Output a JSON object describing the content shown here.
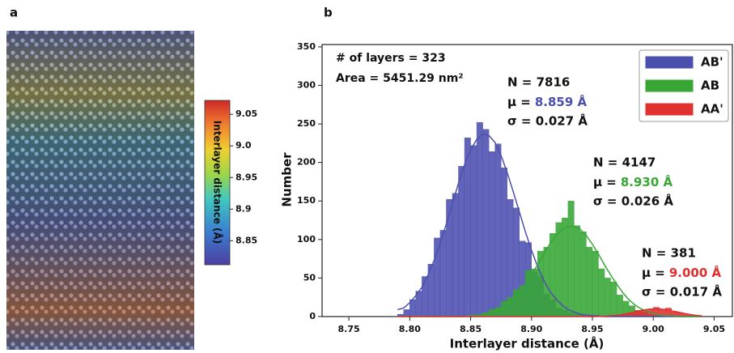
{
  "panel_labels": [
    "a",
    "b"
  ],
  "chart_data": {
    "type": "histogram",
    "xlabel": "Interlayer distance (Å)",
    "ylabel": "Number",
    "annotations": [
      "# of layers = 323",
      "Area = 5451.29 nm²"
    ],
    "bins": [
      8.79,
      8.795,
      8.8,
      8.805,
      8.81,
      8.815,
      8.82,
      8.825,
      8.83,
      8.835,
      8.84,
      8.845,
      8.85,
      8.855,
      8.86,
      8.865,
      8.87,
      8.875,
      8.88,
      8.885,
      8.89,
      8.895,
      8.9,
      8.905,
      8.91,
      8.915,
      8.92,
      8.925,
      8.93,
      8.935,
      8.94,
      8.945,
      8.95,
      8.955,
      8.96,
      8.965,
      8.97,
      8.975,
      8.98,
      8.985,
      8.99,
      8.995,
      9.0,
      9.005,
      9.01,
      9.015,
      9.02,
      9.025,
      9.03,
      9.035,
      9.04
    ],
    "series": [
      {
        "name": "AB'",
        "color": "#4b4fae",
        "stats": {
          "n": "N = 7816",
          "mu": "μ =",
          "mu_value": "8.859 Å",
          "sigma": "σ = 0.027 Å"
        },
        "values": [
          3,
          9,
          22,
          33,
          52,
          68,
          102,
          112,
          152,
          160,
          195,
          232,
          222,
          252,
          243,
          214,
          224,
          193,
          152,
          141,
          98,
          96,
          58,
          52,
          29,
          22,
          11,
          8,
          5,
          3,
          2,
          1,
          0,
          0,
          0,
          0,
          0,
          0,
          0,
          0,
          0,
          0,
          0,
          0,
          0,
          0,
          0,
          0,
          0,
          0
        ],
        "fit": [
          9,
          11,
          18,
          27,
          38,
          54,
          73,
          95,
          120,
          146,
          173,
          197,
          216,
          230,
          237,
          235,
          226,
          209,
          187,
          162,
          136,
          110,
          86,
          65,
          47,
          33,
          23,
          15,
          9,
          6,
          3,
          2,
          1,
          1,
          0,
          0,
          0,
          0,
          0,
          0,
          0,
          0,
          0,
          0,
          0,
          0,
          0,
          0,
          0,
          0,
          0
        ]
      },
      {
        "name": "AB",
        "color": "#37a635",
        "stats": {
          "n": "N = 4147",
          "mu": "μ =",
          "mu_value": "8.930 Å",
          "sigma": "σ = 0.026 Å"
        },
        "values": [
          0,
          0,
          0,
          0,
          0,
          0,
          0,
          0,
          0,
          0,
          0,
          1,
          2,
          3,
          5,
          9,
          12,
          20,
          25,
          35,
          40,
          60,
          62,
          85,
          90,
          108,
          122,
          128,
          150,
          118,
          110,
          90,
          85,
          62,
          50,
          45,
          28,
          20,
          14,
          8,
          6,
          3,
          2,
          1,
          1,
          0,
          0,
          0,
          0,
          0
        ],
        "fit": [
          0,
          0,
          0,
          0,
          0,
          0,
          0,
          0,
          0,
          0,
          0,
          0,
          1,
          1,
          2,
          4,
          7,
          10,
          15,
          22,
          31,
          42,
          54,
          67,
          81,
          94,
          105,
          113,
          117,
          117,
          113,
          105,
          94,
          81,
          67,
          54,
          42,
          31,
          22,
          15,
          10,
          7,
          4,
          2,
          1,
          1,
          0,
          0,
          0,
          0,
          0
        ]
      },
      {
        "name": "AA'",
        "color": "#e03030",
        "stats": {
          "n": "N = 381",
          "mu": "μ =",
          "mu_value": "9.000 Å",
          "sigma": "σ = 0.017 Å"
        },
        "values": [
          0,
          0,
          0,
          0,
          0,
          0,
          0,
          0,
          0,
          0,
          0,
          0,
          0,
          0,
          0,
          0,
          0,
          0,
          0,
          0,
          0,
          0,
          0,
          0,
          0,
          0,
          0,
          0,
          0,
          0,
          0,
          0,
          0,
          0,
          1,
          1,
          2,
          4,
          5,
          8,
          9,
          10,
          12,
          9,
          11,
          6,
          5,
          3,
          2,
          1
        ],
        "fit": [
          0,
          0,
          0,
          0,
          0,
          0,
          0,
          0,
          0,
          0,
          0,
          0,
          0,
          0,
          0,
          0,
          0,
          0,
          0,
          0,
          0,
          0,
          0,
          0,
          0,
          0,
          0,
          0,
          0,
          0,
          0,
          0,
          0,
          0.2,
          0.4,
          0.9,
          1.6,
          2.7,
          4.2,
          5.9,
          7.6,
          9.1,
          9.9,
          9.9,
          9.1,
          7.6,
          5.9,
          4.2,
          2.7,
          1.6,
          0.9
        ]
      }
    ],
    "xlim": [
      8.728,
      9.065
    ],
    "ylim": [
      0,
      353
    ],
    "xticks": [
      8.75,
      {
        "value": 8.8,
        "label": "8.80"
      },
      8.85,
      {
        "value": 8.9,
        "label": "8.90"
      },
      8.95,
      {
        "value": 9.0,
        "label": "9.00"
      },
      9.05
    ],
    "yticks": [
      0,
      50,
      100,
      150,
      200,
      250,
      300,
      350
    ],
    "legend": "upper right",
    "colorbar": {
      "label": "Interlayer distance (Å)",
      "lim": [
        8.812,
        9.072
      ],
      "ticks": [
        8.85,
        8.9,
        8.95,
        {
          "value": 9.0,
          "label": "9.0"
        },
        9.05
      ]
    }
  }
}
